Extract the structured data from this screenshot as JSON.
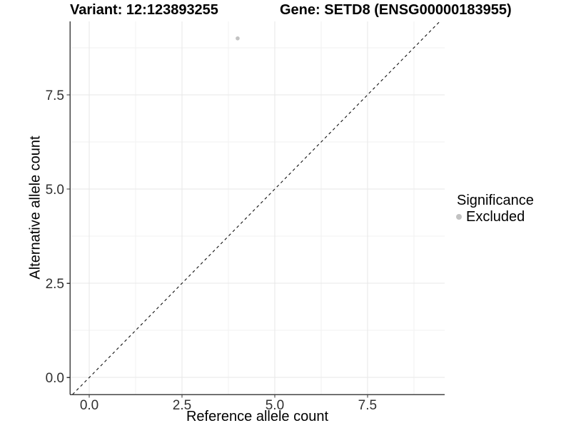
{
  "title": {
    "variant": "Variant: 12:123893255",
    "gene": "Gene: SETD8 (ENSG00000183955)"
  },
  "chart_data": {
    "type": "scatter",
    "xlabel": "Reference allele count",
    "ylabel": "Alternative allele count",
    "xlim": [
      -0.52,
      9.58
    ],
    "ylim": [
      -0.45,
      9.45
    ],
    "x_tick_values": [
      0,
      2.5,
      5,
      7.5
    ],
    "x_tick_labels": [
      "0.0",
      "2.5",
      "5.0",
      "7.5"
    ],
    "y_tick_values": [
      0,
      2.5,
      5,
      7.5
    ],
    "y_tick_labels": [
      "0.0",
      "2.5",
      "5.0",
      "7.5"
    ],
    "x_minor_values": [
      1.25,
      3.75,
      6.25,
      8.75
    ],
    "y_minor_values": [
      1.25,
      3.75,
      6.25,
      8.75
    ],
    "grid": true,
    "points": [
      {
        "x": 4,
        "y": 9,
        "series": "Excluded"
      }
    ],
    "identity_line": {
      "slope": 1,
      "intercept": 0,
      "style": "dashed"
    },
    "legend": {
      "title": "Significance",
      "position": "right",
      "items": [
        {
          "label": "Excluded",
          "color": "#c2c2c2"
        }
      ]
    },
    "colors": {
      "point": "#c2c2c2",
      "grid_major": "#e7e7e7",
      "grid_minor": "#f2f2f2",
      "axis_line": "#464646",
      "tick_mark": "#333333",
      "tick_text": "#303030",
      "identity_line": "#111111"
    }
  }
}
